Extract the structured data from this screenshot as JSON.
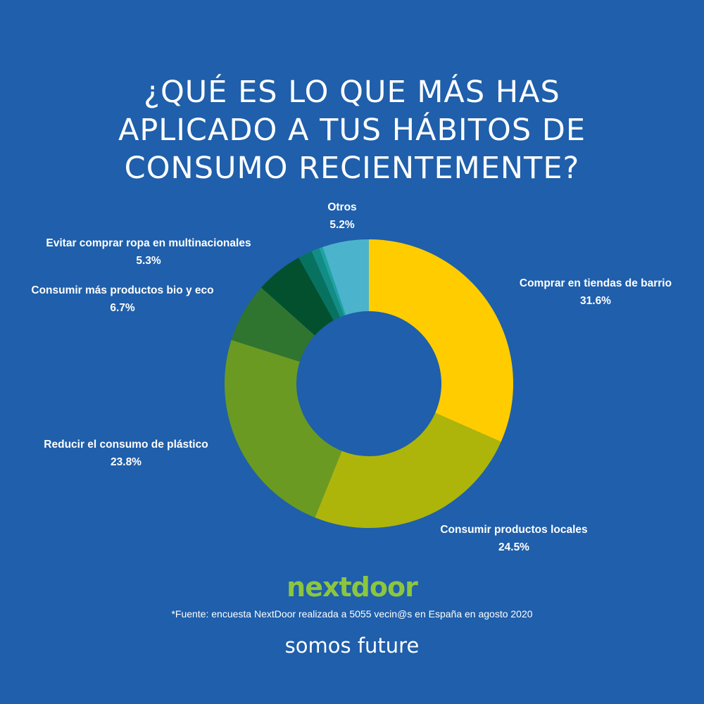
{
  "title_lines": [
    "¿QUÉ ES LO QUE MÁS HAS",
    "APLICADO A TUS HÁBITOS DE",
    "CONSUMO RECIENTEMENTE?"
  ],
  "chart_data": {
    "type": "pie",
    "donut": true,
    "title": "¿QUÉ ES LO QUE MÁS HAS APLICADO A TUS HÁBITOS DE CONSUMO RECIENTEMENTE?",
    "unit": "%",
    "slices": [
      {
        "label": "Comprar en tiendas de barrio",
        "value": 31.6,
        "display": "31.6%",
        "color": "#ffcc00"
      },
      {
        "label": "Consumir productos locales",
        "value": 24.5,
        "display": "24.5%",
        "color": "#adb50a"
      },
      {
        "label": "Reducir el consumo de plástico",
        "value": 23.8,
        "display": "23.8%",
        "color": "#6a9a22"
      },
      {
        "label": "Consumir más productos bio y eco",
        "value": 6.7,
        "display": "6.7%",
        "color": "#2f7530"
      },
      {
        "label": "Evitar comprar ropa en multinacionales",
        "value": 5.3,
        "display": "5.3%",
        "color": "#03502e"
      },
      {
        "label": "",
        "value": 1.6,
        "display": "",
        "color": "#087261"
      },
      {
        "label": "",
        "value": 0.9,
        "display": "",
        "color": "#138c86"
      },
      {
        "label": "",
        "value": 0.4,
        "display": "",
        "color": "#1da4a0"
      },
      {
        "label": "Otros",
        "value": 5.2,
        "display": "5.2%",
        "color": "#4cb3cc"
      }
    ]
  },
  "brand": "nextdoor",
  "source": "*Fuente: encuesta NextDoor realizada a 5055 vecin@s en España en agosto 2020",
  "footer": "somos future",
  "colors": {
    "background": "#1f5fab",
    "brand": "#8cc63f"
  }
}
